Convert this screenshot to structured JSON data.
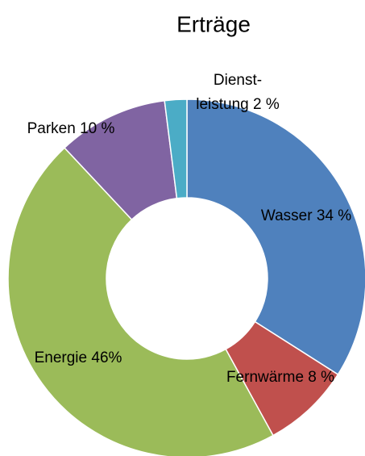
{
  "chart_data": {
    "type": "donut",
    "title": "Erträge",
    "categories": [
      "Wasser",
      "Fernwärme",
      "Energie",
      "Parken",
      "Dienst-leistung"
    ],
    "values": [
      34,
      8,
      46,
      10,
      2
    ],
    "value_labels": [
      "34 %",
      "8 %",
      "46%",
      "10 %",
      "2 %"
    ],
    "colors": [
      "#4f81bd",
      "#c0504d",
      "#9bbb59",
      "#8064a2",
      "#4bacc6"
    ]
  }
}
